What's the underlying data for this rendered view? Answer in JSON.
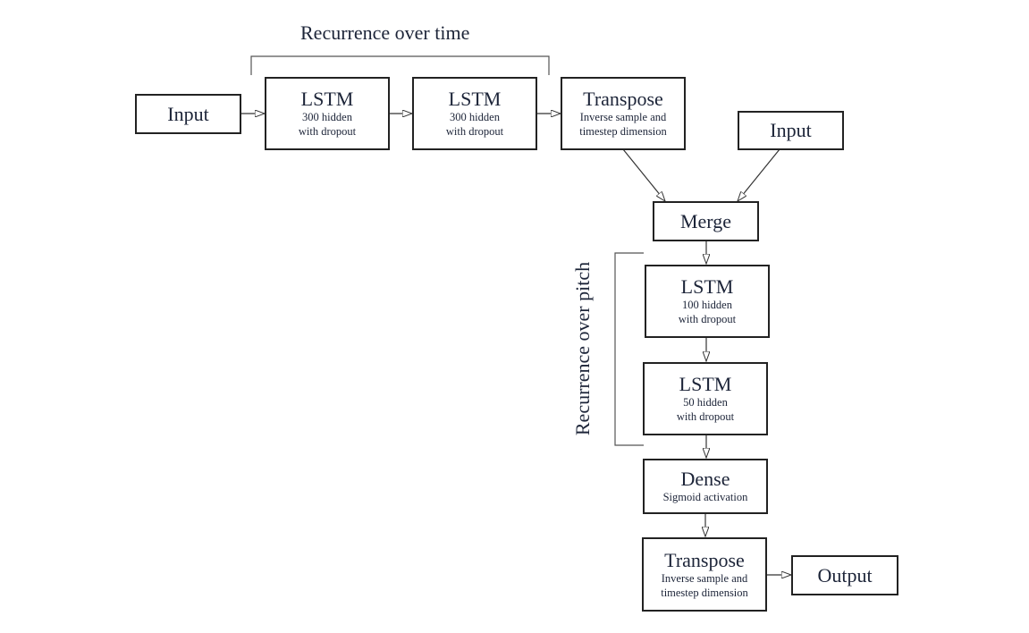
{
  "top_label": "Recurrence over time",
  "side_label": "Recurrence over pitch",
  "nodes": {
    "input1": {
      "title": "Input"
    },
    "lstm1": {
      "title": "LSTM",
      "sub1": "300 hidden",
      "sub2": "with dropout"
    },
    "lstm2": {
      "title": "LSTM",
      "sub1": "300 hidden",
      "sub2": "with dropout"
    },
    "transpose1": {
      "title": "Transpose",
      "sub1": "Inverse sample and",
      "sub2": "timestep dimension"
    },
    "input2": {
      "title": "Input"
    },
    "merge": {
      "title": "Merge"
    },
    "lstm3": {
      "title": "LSTM",
      "sub1": "100 hidden",
      "sub2": "with dropout"
    },
    "lstm4": {
      "title": "LSTM",
      "sub1": "50 hidden",
      "sub2": "with dropout"
    },
    "dense": {
      "title": "Dense",
      "sub1": "Sigmoid activation"
    },
    "transpose2": {
      "title": "Transpose",
      "sub1": "Inverse sample and",
      "sub2": "timestep dimension"
    },
    "output": {
      "title": "Output"
    }
  },
  "colors": {
    "text": "#1c2438",
    "border": "#222222",
    "line": "#333333"
  }
}
